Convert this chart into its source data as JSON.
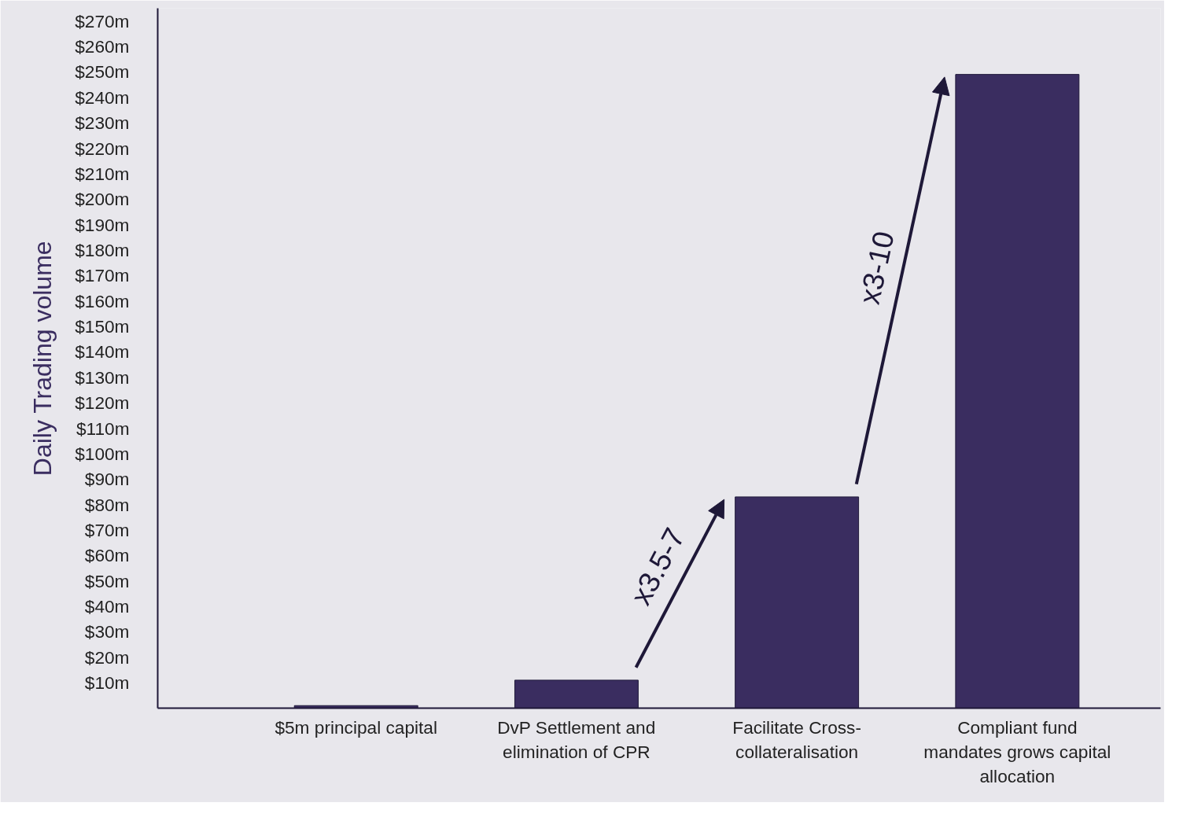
{
  "chart_data": {
    "type": "bar",
    "ylabel": "Daily Trading volume",
    "categories": [
      "$5m principal capital",
      "DvP Settlement and elimination of CPR",
      "Facilitate Cross-collateralisation",
      "Compliant fund mandates grows capital allocation"
    ],
    "values": [
      1,
      11,
      83,
      249
    ],
    "color": "#3a2d60",
    "ylim": [
      0,
      275
    ],
    "yticks": [
      {
        "value": 10,
        "label": "$10m"
      },
      {
        "value": 20,
        "label": "$20m"
      },
      {
        "value": 30,
        "label": "$30m"
      },
      {
        "value": 40,
        "label": "$40m"
      },
      {
        "value": 50,
        "label": "$50m"
      },
      {
        "value": 60,
        "label": "$60m"
      },
      {
        "value": 70,
        "label": "$70m"
      },
      {
        "value": 80,
        "label": "$80m"
      },
      {
        "value": 90,
        "label": "$90m"
      },
      {
        "value": 100,
        "label": "$100m"
      },
      {
        "value": 110,
        "label": "$110m"
      },
      {
        "value": 120,
        "label": "$120m"
      },
      {
        "value": 130,
        "label": "$130m"
      },
      {
        "value": 140,
        "label": "$140m"
      },
      {
        "value": 150,
        "label": "$150m"
      },
      {
        "value": 160,
        "label": "$160m"
      },
      {
        "value": 170,
        "label": "$170m"
      },
      {
        "value": 180,
        "label": "$180m"
      },
      {
        "value": 190,
        "label": "$190m"
      },
      {
        "value": 200,
        "label": "$200m"
      },
      {
        "value": 210,
        "label": "$210m"
      },
      {
        "value": 220,
        "label": "$220m"
      },
      {
        "value": 230,
        "label": "$230m"
      },
      {
        "value": 240,
        "label": "$240m"
      },
      {
        "value": 250,
        "label": "$250m"
      },
      {
        "value": 260,
        "label": "$260m"
      },
      {
        "value": 270,
        "label": "$270m"
      }
    ],
    "annotations": [
      "x3.5-7",
      "x3-10"
    ],
    "grid": false
  }
}
